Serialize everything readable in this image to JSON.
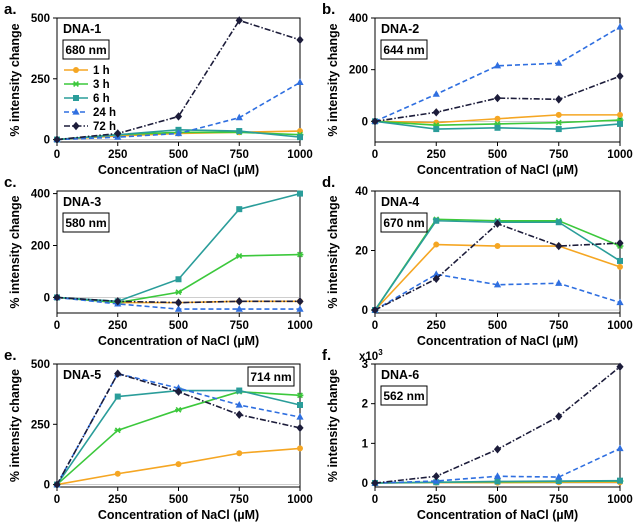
{
  "figure": {
    "x_axis_label": "Concentration of NaCl (µM)",
    "y_axis_label": "% intensity change",
    "legend": [
      {
        "label": "1 h",
        "key": "1h"
      },
      {
        "label": "3 h",
        "key": "3h"
      },
      {
        "label": "6 h",
        "key": "6h"
      },
      {
        "label": "24 h",
        "key": "24h"
      },
      {
        "label": "72 h",
        "key": "72h"
      }
    ]
  },
  "series_styles": {
    "1h": {
      "color": "#F5A623",
      "dash": "",
      "marker": "circle"
    },
    "3h": {
      "color": "#3CC83C",
      "dash": "",
      "marker": "star"
    },
    "6h": {
      "color": "#2A9D9A",
      "dash": "",
      "marker": "square"
    },
    "24h": {
      "color": "#2F6FE0",
      "dash": "5,3",
      "marker": "triangle"
    },
    "72h": {
      "color": "#1C1C3A",
      "dash": "6,2,1.5,2",
      "marker": "diamond"
    }
  },
  "chart_data": [
    {
      "panel": "a.",
      "dna": "DNA-1",
      "wavelength": "680 nm",
      "type": "line",
      "x": [
        0,
        250,
        500,
        750,
        1000
      ],
      "xticks": [
        "0",
        "250",
        "500",
        "750",
        "1000"
      ],
      "ylim": [
        -10,
        500
      ],
      "yticks": [
        0,
        250,
        500
      ],
      "ytick_labels": [
        "0",
        "250",
        "500"
      ],
      "series": [
        {
          "key": "1h",
          "values": [
            0,
            15,
            25,
            30,
            35
          ]
        },
        {
          "key": "3h",
          "values": [
            0,
            20,
            30,
            30,
            20
          ]
        },
        {
          "key": "6h",
          "values": [
            0,
            20,
            40,
            35,
            10
          ]
        },
        {
          "key": "24h",
          "values": [
            0,
            10,
            25,
            90,
            235
          ]
        },
        {
          "key": "72h",
          "values": [
            0,
            25,
            95,
            490,
            410
          ]
        }
      ]
    },
    {
      "panel": "b.",
      "dna": "DNA-2",
      "wavelength": "644 nm",
      "type": "line",
      "x": [
        0,
        250,
        500,
        750,
        1000
      ],
      "xticks": [
        "0",
        "250",
        "500",
        "750",
        "1000"
      ],
      "ylim": [
        -80,
        400
      ],
      "yticks": [
        0,
        200,
        400
      ],
      "ytick_labels": [
        "0",
        "200",
        "400"
      ],
      "series": [
        {
          "key": "1h",
          "values": [
            0,
            -5,
            10,
            25,
            25
          ]
        },
        {
          "key": "3h",
          "values": [
            0,
            -15,
            -10,
            -5,
            5
          ]
        },
        {
          "key": "6h",
          "values": [
            0,
            -30,
            -25,
            -30,
            -10
          ]
        },
        {
          "key": "24h",
          "values": [
            0,
            105,
            215,
            225,
            365
          ]
        },
        {
          "key": "72h",
          "values": [
            0,
            35,
            90,
            85,
            175
          ]
        }
      ]
    },
    {
      "panel": "c.",
      "dna": "DNA-3",
      "wavelength": "580 nm",
      "type": "line",
      "x": [
        0,
        250,
        500,
        750,
        1000
      ],
      "xticks": [
        "0",
        "250",
        "500",
        "750",
        "1000"
      ],
      "ylim": [
        -60,
        410
      ],
      "yticks": [
        0,
        200,
        400
      ],
      "ytick_labels": [
        "0",
        "200",
        "400"
      ],
      "series": [
        {
          "key": "1h",
          "values": [
            0,
            -20,
            -20,
            -15,
            -15
          ]
        },
        {
          "key": "3h",
          "values": [
            0,
            -20,
            20,
            160,
            165
          ]
        },
        {
          "key": "6h",
          "values": [
            0,
            -15,
            70,
            340,
            400
          ]
        },
        {
          "key": "24h",
          "values": [
            0,
            -25,
            -45,
            -45,
            -45
          ]
        },
        {
          "key": "72h",
          "values": [
            0,
            -15,
            -20,
            -15,
            -15
          ]
        }
      ]
    },
    {
      "panel": "d.",
      "dna": "DNA-4",
      "wavelength": "670 nm",
      "type": "line",
      "x": [
        0,
        250,
        500,
        750,
        1000
      ],
      "xticks": [
        "0",
        "250",
        "500",
        "750",
        "1000"
      ],
      "ylim": [
        -1,
        40
      ],
      "yticks": [
        0,
        20,
        40
      ],
      "ytick_labels": [
        "0",
        "20",
        "40"
      ],
      "series": [
        {
          "key": "1h",
          "values": [
            0,
            22,
            21.5,
            21.5,
            14.5
          ]
        },
        {
          "key": "3h",
          "values": [
            0,
            30.5,
            30,
            30,
            21.5
          ]
        },
        {
          "key": "6h",
          "values": [
            0,
            30,
            29.5,
            29.5,
            16.5
          ]
        },
        {
          "key": "24h",
          "values": [
            0,
            12,
            8.5,
            9,
            2.5
          ]
        },
        {
          "key": "72h",
          "values": [
            0,
            10.5,
            29,
            21.5,
            22.5
          ]
        }
      ]
    },
    {
      "panel": "e.",
      "dna": "DNA-5",
      "wavelength": "714 nm",
      "type": "line",
      "x": [
        0,
        250,
        500,
        750,
        1000
      ],
      "xticks": [
        "0",
        "250",
        "500",
        "750",
        "1000"
      ],
      "ylim": [
        -10,
        500
      ],
      "yticks": [
        0,
        250,
        500
      ],
      "ytick_labels": [
        "0",
        "250",
        "500"
      ],
      "series": [
        {
          "key": "1h",
          "values": [
            0,
            45,
            85,
            130,
            150
          ]
        },
        {
          "key": "3h",
          "values": [
            0,
            225,
            310,
            385,
            370
          ]
        },
        {
          "key": "6h",
          "values": [
            0,
            365,
            390,
            390,
            330
          ]
        },
        {
          "key": "24h",
          "values": [
            0,
            460,
            400,
            330,
            280
          ]
        },
        {
          "key": "72h",
          "values": [
            0,
            460,
            385,
            290,
            235
          ]
        }
      ]
    },
    {
      "panel": "f.",
      "dna": "DNA-6",
      "wavelength": "562 nm",
      "type": "line",
      "x": [
        0,
        250,
        500,
        750,
        1000
      ],
      "xticks": [
        "0",
        "250",
        "500",
        "750",
        "1000"
      ],
      "ylim": [
        -0.1,
        3
      ],
      "yticks": [
        0,
        1,
        2,
        3
      ],
      "ytick_labels": [
        "0",
        "1",
        "2",
        "3"
      ],
      "y_multiplier": "x10",
      "y_multiplier_exp": "3",
      "series": [
        {
          "key": "1h",
          "values": [
            0,
            0.01,
            0.01,
            0.02,
            0.02
          ]
        },
        {
          "key": "3h",
          "values": [
            0,
            0.02,
            0.03,
            0.04,
            0.05
          ]
        },
        {
          "key": "6h",
          "values": [
            0,
            0.02,
            0.04,
            0.05,
            0.06
          ]
        },
        {
          "key": "24h",
          "values": [
            0,
            0.05,
            0.17,
            0.15,
            0.87
          ]
        },
        {
          "key": "72h",
          "values": [
            0,
            0.17,
            0.85,
            1.68,
            2.93
          ]
        }
      ]
    }
  ]
}
